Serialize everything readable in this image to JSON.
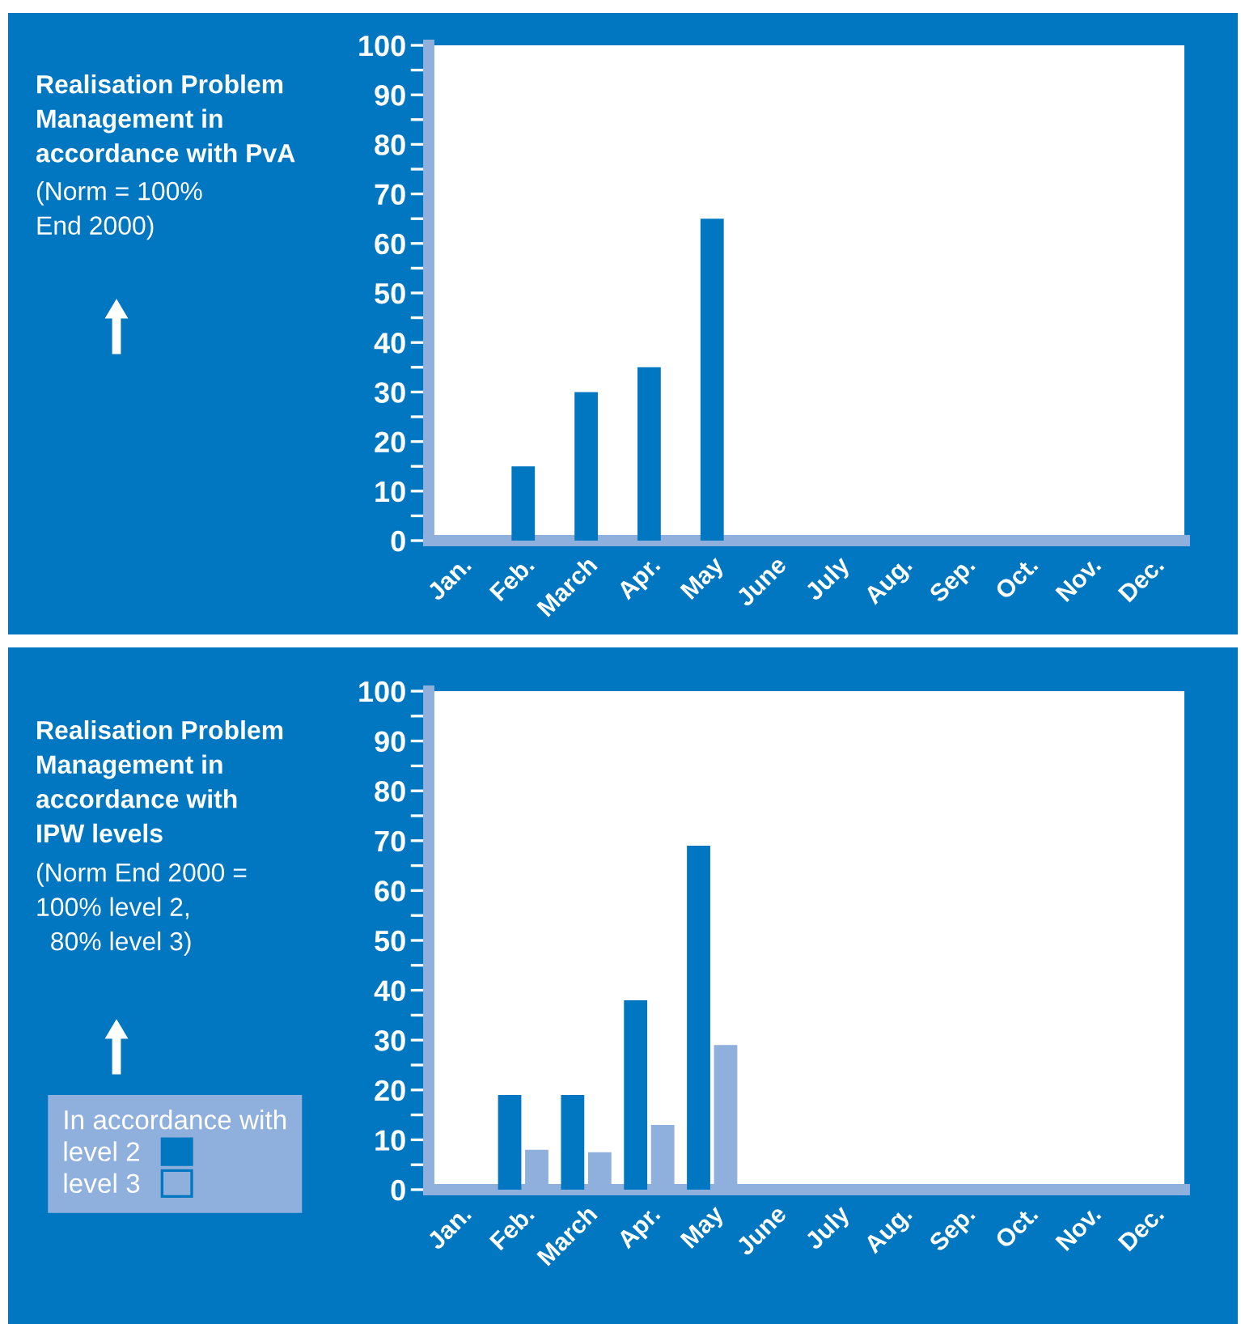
{
  "chart_data": [
    {
      "type": "bar",
      "ylabel": "Realisation Problem\nManagement in\naccordance with PvA",
      "annotations": [
        "(Norm = 100%\nEnd 2000)"
      ],
      "categories": [
        "Jan.",
        "Feb.",
        "March",
        "Apr.",
        "May",
        "June",
        "July",
        "Aug.",
        "Sep.",
        "Oct.",
        "Nov.",
        "Dec."
      ],
      "series": [
        {
          "color": "#0077c0",
          "values": [
            null,
            15,
            30,
            35,
            65,
            null,
            null,
            null,
            null,
            null,
            null,
            null
          ]
        }
      ],
      "ylim": [
        0,
        100
      ],
      "yticks": [
        0,
        {
          "value": 5,
          "label": null
        },
        10,
        {
          "value": 15,
          "label": null
        },
        20,
        {
          "value": 25,
          "label": null
        },
        30,
        {
          "value": 35,
          "label": null
        },
        40,
        {
          "value": 45,
          "label": null
        },
        50,
        {
          "value": 55,
          "label": null
        },
        60,
        {
          "value": 65,
          "label": null
        },
        70,
        {
          "value": 75,
          "label": null
        },
        80,
        {
          "value": 85,
          "label": null
        },
        90,
        {
          "value": 95,
          "label": null
        },
        100
      ],
      "grid": false,
      "legend": false
    },
    {
      "type": "bar",
      "ylabel": "Realisation Problem\nManagement in\naccordance with\nIPW levels",
      "annotations": [
        "(Norm End 2000 =\n100% level 2,\n  80% level 3)"
      ],
      "legend_title": "In accordance with",
      "categories": [
        "Jan.",
        "Feb.",
        "March",
        "Apr.",
        "May",
        "June",
        "July",
        "Aug.",
        "Sep.",
        "Oct.",
        "Nov.",
        "Dec."
      ],
      "series": [
        {
          "name": "level 2",
          "color": "#0077c0",
          "values": [
            null,
            19,
            19,
            38,
            69,
            null,
            null,
            null,
            null,
            null,
            null,
            null
          ]
        },
        {
          "name": "level 3",
          "color": "#8fb0dc",
          "values": [
            null,
            8,
            7.5,
            13,
            29,
            null,
            null,
            null,
            null,
            null,
            null,
            null
          ]
        }
      ],
      "ylim": [
        0,
        100
      ],
      "yticks": [
        0,
        {
          "value": 5,
          "label": null
        },
        10,
        {
          "value": 15,
          "label": null
        },
        20,
        {
          "value": 25,
          "label": null
        },
        30,
        {
          "value": 35,
          "label": null
        },
        40,
        {
          "value": 45,
          "label": null
        },
        50,
        {
          "value": 55,
          "label": null
        },
        60,
        {
          "value": 65,
          "label": null
        },
        70,
        {
          "value": 75,
          "label": null
        },
        80,
        {
          "value": 85,
          "label": null
        },
        90,
        {
          "value": 95,
          "label": null
        },
        100
      ],
      "grid": false,
      "legend": "left"
    }
  ]
}
